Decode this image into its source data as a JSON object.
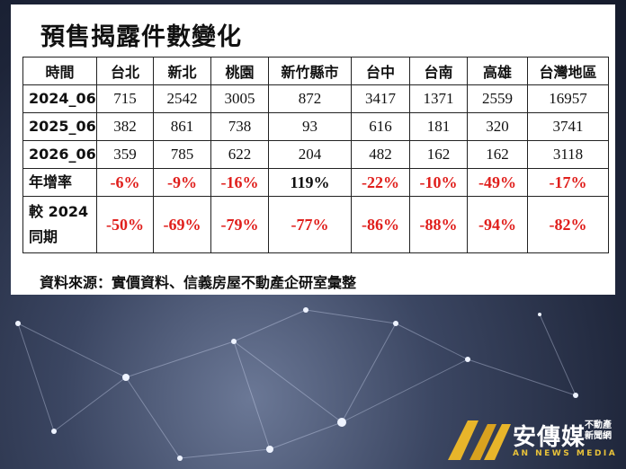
{
  "title": "預售揭露件數變化",
  "table": {
    "header": [
      "時間",
      "台北",
      "新北",
      "桃園",
      "新竹縣市",
      "台中",
      "台南",
      "高雄",
      "台灣地區"
    ],
    "rows": [
      [
        "2024_06",
        "715",
        "2542",
        "3005",
        "872",
        "3417",
        "1371",
        "2559",
        "16957"
      ],
      [
        "2025_06",
        "382",
        "861",
        "738",
        "93",
        "616",
        "181",
        "320",
        "3741"
      ],
      [
        "2026_06",
        "359",
        "785",
        "622",
        "204",
        "482",
        "162",
        "162",
        "3118"
      ],
      [
        "年增率",
        "-6%",
        "-9%",
        "-16%",
        "119%",
        "-22%",
        "-10%",
        "-49%",
        "-17%"
      ],
      [
        "較 2024\n同期",
        "-50%",
        "-69%",
        "-79%",
        "-77%",
        "-86%",
        "-88%",
        "-94%",
        "-82%"
      ]
    ]
  },
  "source": "資料來源：實價資料、信義房屋不動產企研室彙整",
  "logo": {
    "name": "安傳媒",
    "sub": "不動產新聞網",
    "en": "AN NEWS MEDIA"
  }
}
